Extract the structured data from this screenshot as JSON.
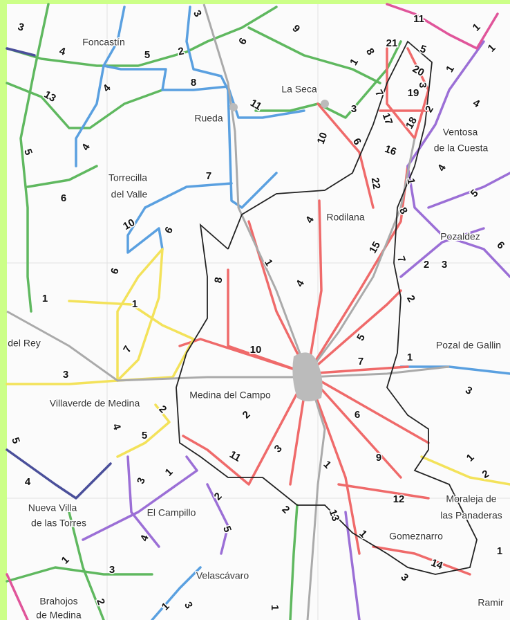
{
  "places": [
    "Foncastín",
    "La Seca",
    "Rueda",
    "Ventosa",
    "de la Cuesta",
    "Torrecilla",
    "del Valle",
    "Rodilana",
    "Pozaldez",
    "del Rey",
    "Pozal de Gallin",
    "Medina del Campo",
    "Villaverde de Medina",
    "Moraleja de",
    "las Panaderas",
    "Nueva Villa",
    "de las Torres",
    "El Campillo",
    "Gomeznarro",
    "Velascávaro",
    "Brahojos",
    "de Medina",
    "Ramir"
  ],
  "route_labels": [
    "3",
    "4",
    "5",
    "2",
    "3",
    "6",
    "9",
    "11",
    "1",
    "1",
    "13",
    "4",
    "8",
    "11",
    "5",
    "4",
    "7",
    "6",
    "10",
    "6",
    "1",
    "8",
    "21",
    "5",
    "20",
    "1",
    "3",
    "19",
    "7",
    "3",
    "4",
    "17",
    "18",
    "2",
    "10",
    "6",
    "16",
    "22",
    "1",
    "4",
    "5",
    "4",
    "8",
    "6",
    "15",
    "7",
    "2",
    "3",
    "1",
    "4",
    "8",
    "2",
    "1",
    "6",
    "1",
    "7",
    "10",
    "5",
    "7",
    "1",
    "3",
    "3",
    "2",
    "2",
    "4",
    "5",
    "6",
    "5",
    "11",
    "3",
    "9",
    "1",
    "1",
    "1",
    "2",
    "4",
    "3",
    "12",
    "2",
    "2",
    "13",
    "5",
    "4",
    "1",
    "14",
    "1",
    "1",
    "3",
    "3",
    "2",
    "1",
    "3",
    "1"
  ]
}
